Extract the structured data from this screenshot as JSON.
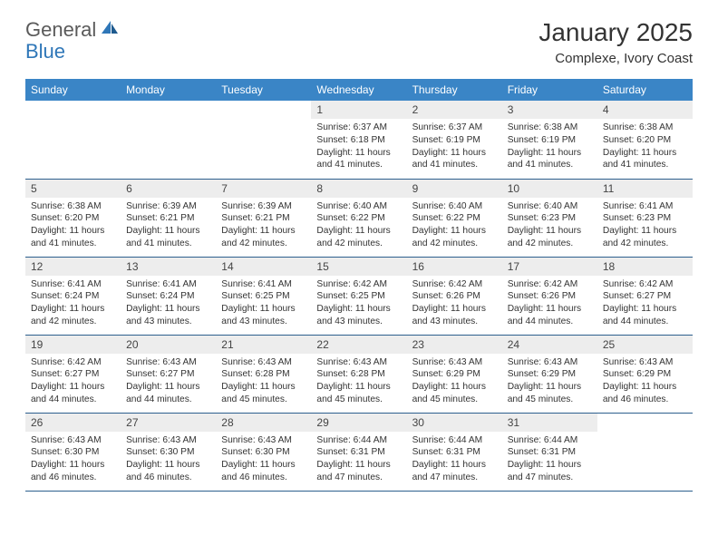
{
  "logo": {
    "general": "General",
    "blue": "Blue"
  },
  "title": {
    "month": "January 2025",
    "location": "Complexe, Ivory Coast"
  },
  "colors": {
    "header_bg": "#3a85c6",
    "header_text": "#ffffff",
    "daynum_bg": "#ededed",
    "border": "#2d5f8e",
    "logo_gray": "#5a5a5a",
    "logo_blue": "#2f77b8"
  },
  "daysOfWeek": [
    "Sunday",
    "Monday",
    "Tuesday",
    "Wednesday",
    "Thursday",
    "Friday",
    "Saturday"
  ],
  "weeks": [
    [
      null,
      null,
      null,
      {
        "n": "1",
        "sunrise": "6:37 AM",
        "sunset": "6:18 PM",
        "daylight": "11 hours and 41 minutes."
      },
      {
        "n": "2",
        "sunrise": "6:37 AM",
        "sunset": "6:19 PM",
        "daylight": "11 hours and 41 minutes."
      },
      {
        "n": "3",
        "sunrise": "6:38 AM",
        "sunset": "6:19 PM",
        "daylight": "11 hours and 41 minutes."
      },
      {
        "n": "4",
        "sunrise": "6:38 AM",
        "sunset": "6:20 PM",
        "daylight": "11 hours and 41 minutes."
      }
    ],
    [
      {
        "n": "5",
        "sunrise": "6:38 AM",
        "sunset": "6:20 PM",
        "daylight": "11 hours and 41 minutes."
      },
      {
        "n": "6",
        "sunrise": "6:39 AM",
        "sunset": "6:21 PM",
        "daylight": "11 hours and 41 minutes."
      },
      {
        "n": "7",
        "sunrise": "6:39 AM",
        "sunset": "6:21 PM",
        "daylight": "11 hours and 42 minutes."
      },
      {
        "n": "8",
        "sunrise": "6:40 AM",
        "sunset": "6:22 PM",
        "daylight": "11 hours and 42 minutes."
      },
      {
        "n": "9",
        "sunrise": "6:40 AM",
        "sunset": "6:22 PM",
        "daylight": "11 hours and 42 minutes."
      },
      {
        "n": "10",
        "sunrise": "6:40 AM",
        "sunset": "6:23 PM",
        "daylight": "11 hours and 42 minutes."
      },
      {
        "n": "11",
        "sunrise": "6:41 AM",
        "sunset": "6:23 PM",
        "daylight": "11 hours and 42 minutes."
      }
    ],
    [
      {
        "n": "12",
        "sunrise": "6:41 AM",
        "sunset": "6:24 PM",
        "daylight": "11 hours and 42 minutes."
      },
      {
        "n": "13",
        "sunrise": "6:41 AM",
        "sunset": "6:24 PM",
        "daylight": "11 hours and 43 minutes."
      },
      {
        "n": "14",
        "sunrise": "6:41 AM",
        "sunset": "6:25 PM",
        "daylight": "11 hours and 43 minutes."
      },
      {
        "n": "15",
        "sunrise": "6:42 AM",
        "sunset": "6:25 PM",
        "daylight": "11 hours and 43 minutes."
      },
      {
        "n": "16",
        "sunrise": "6:42 AM",
        "sunset": "6:26 PM",
        "daylight": "11 hours and 43 minutes."
      },
      {
        "n": "17",
        "sunrise": "6:42 AM",
        "sunset": "6:26 PM",
        "daylight": "11 hours and 44 minutes."
      },
      {
        "n": "18",
        "sunrise": "6:42 AM",
        "sunset": "6:27 PM",
        "daylight": "11 hours and 44 minutes."
      }
    ],
    [
      {
        "n": "19",
        "sunrise": "6:42 AM",
        "sunset": "6:27 PM",
        "daylight": "11 hours and 44 minutes."
      },
      {
        "n": "20",
        "sunrise": "6:43 AM",
        "sunset": "6:27 PM",
        "daylight": "11 hours and 44 minutes."
      },
      {
        "n": "21",
        "sunrise": "6:43 AM",
        "sunset": "6:28 PM",
        "daylight": "11 hours and 45 minutes."
      },
      {
        "n": "22",
        "sunrise": "6:43 AM",
        "sunset": "6:28 PM",
        "daylight": "11 hours and 45 minutes."
      },
      {
        "n": "23",
        "sunrise": "6:43 AM",
        "sunset": "6:29 PM",
        "daylight": "11 hours and 45 minutes."
      },
      {
        "n": "24",
        "sunrise": "6:43 AM",
        "sunset": "6:29 PM",
        "daylight": "11 hours and 45 minutes."
      },
      {
        "n": "25",
        "sunrise": "6:43 AM",
        "sunset": "6:29 PM",
        "daylight": "11 hours and 46 minutes."
      }
    ],
    [
      {
        "n": "26",
        "sunrise": "6:43 AM",
        "sunset": "6:30 PM",
        "daylight": "11 hours and 46 minutes."
      },
      {
        "n": "27",
        "sunrise": "6:43 AM",
        "sunset": "6:30 PM",
        "daylight": "11 hours and 46 minutes."
      },
      {
        "n": "28",
        "sunrise": "6:43 AM",
        "sunset": "6:30 PM",
        "daylight": "11 hours and 46 minutes."
      },
      {
        "n": "29",
        "sunrise": "6:44 AM",
        "sunset": "6:31 PM",
        "daylight": "11 hours and 47 minutes."
      },
      {
        "n": "30",
        "sunrise": "6:44 AM",
        "sunset": "6:31 PM",
        "daylight": "11 hours and 47 minutes."
      },
      {
        "n": "31",
        "sunrise": "6:44 AM",
        "sunset": "6:31 PM",
        "daylight": "11 hours and 47 minutes."
      },
      null
    ]
  ],
  "labels": {
    "sunrise": "Sunrise:",
    "sunset": "Sunset:",
    "daylight": "Daylight:"
  }
}
